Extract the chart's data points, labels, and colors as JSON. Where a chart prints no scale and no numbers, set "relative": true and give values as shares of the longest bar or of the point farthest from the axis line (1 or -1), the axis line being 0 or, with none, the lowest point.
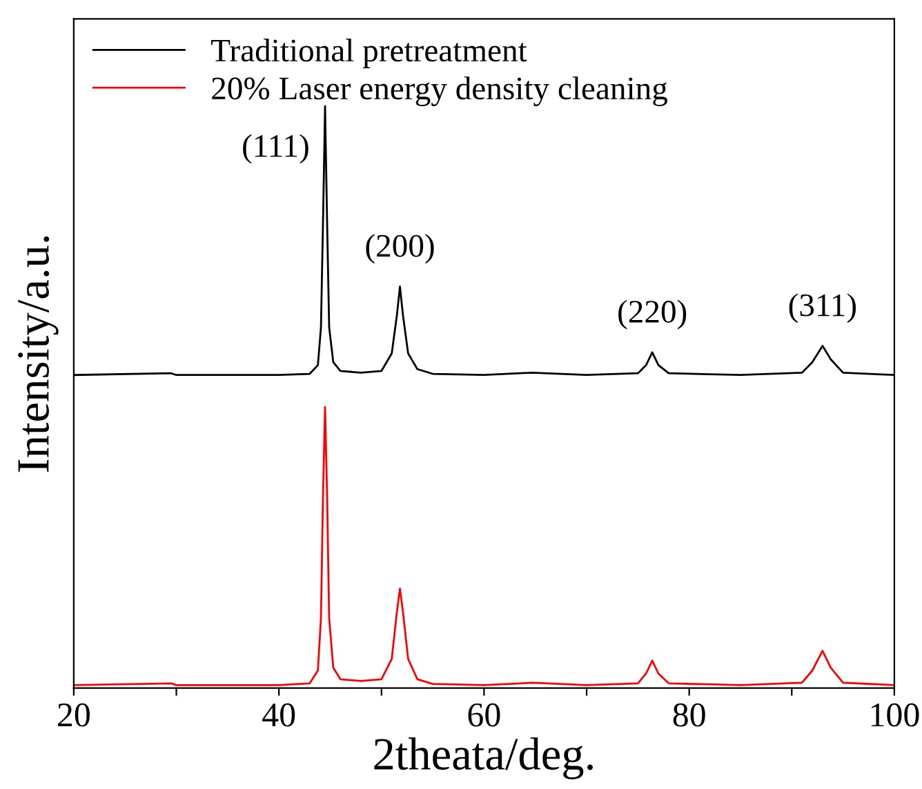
{
  "chart_data": {
    "type": "line",
    "relative": true,
    "xlabel": "2theata/deg.",
    "ylabel": "Intensity/a.u.",
    "xlim": [
      20,
      100
    ],
    "xticks": [
      20,
      {
        "value": 30,
        "label": null
      },
      40,
      {
        "value": 50,
        "label": null
      },
      60,
      {
        "value": 70,
        "label": null
      },
      80,
      {
        "value": 90,
        "label": null
      },
      100
    ],
    "legend": "top left",
    "grid": false,
    "line_style": "solid",
    "marker": "none",
    "tick_labels": "x",
    "annotations": [
      {
        "text": "(111)",
        "x": 44.5,
        "y": 1.0
      },
      {
        "text": "(200)",
        "x": 51.8,
        "y": 0.69
      },
      {
        "text": "(220)",
        "x": 76.4,
        "y": 0.577
      },
      {
        "text": "(311)",
        "x": 93.0,
        "y": 0.588
      }
    ],
    "series": [
      {
        "name": "Traditional pretreatment",
        "color": "#000000",
        "x": [
          20,
          29.5,
          30,
          40,
          43,
          43.8,
          44.1,
          44.3,
          44.5,
          44.7,
          44.9,
          45.3,
          46,
          48,
          50,
          51,
          51.5,
          51.8,
          52.1,
          52.6,
          53.5,
          55,
          60,
          64.7,
          70,
          75,
          75.8,
          76.4,
          77,
          78,
          85,
          91,
          92,
          93,
          93.8,
          95,
          100
        ],
        "values": [
          0.538,
          0.541,
          0.538,
          0.538,
          0.54,
          0.555,
          0.62,
          0.8,
          1.0,
          0.8,
          0.62,
          0.56,
          0.545,
          0.542,
          0.545,
          0.575,
          0.64,
          0.69,
          0.64,
          0.575,
          0.548,
          0.54,
          0.538,
          0.542,
          0.538,
          0.541,
          0.555,
          0.577,
          0.555,
          0.541,
          0.538,
          0.542,
          0.56,
          0.588,
          0.565,
          0.542,
          0.538
        ]
      },
      {
        "name": "20% Laser energy density cleaning",
        "color": "#ff0000",
        "x": [
          20,
          29.5,
          30,
          40,
          43,
          43.8,
          44.1,
          44.3,
          44.5,
          44.7,
          44.9,
          45.3,
          46,
          48,
          50,
          51,
          51.5,
          51.8,
          52.1,
          52.6,
          53.5,
          55,
          60,
          64.7,
          70,
          75,
          75.8,
          76.4,
          77,
          78,
          85,
          91,
          92,
          93,
          93.8,
          95,
          100
        ],
        "values": [
          0.005,
          0.008,
          0.005,
          0.005,
          0.008,
          0.03,
          0.12,
          0.33,
          0.483,
          0.33,
          0.12,
          0.035,
          0.015,
          0.012,
          0.015,
          0.05,
          0.13,
          0.171,
          0.13,
          0.05,
          0.015,
          0.007,
          0.005,
          0.009,
          0.005,
          0.008,
          0.025,
          0.047,
          0.025,
          0.008,
          0.005,
          0.009,
          0.03,
          0.064,
          0.035,
          0.009,
          0.005
        ]
      }
    ]
  }
}
